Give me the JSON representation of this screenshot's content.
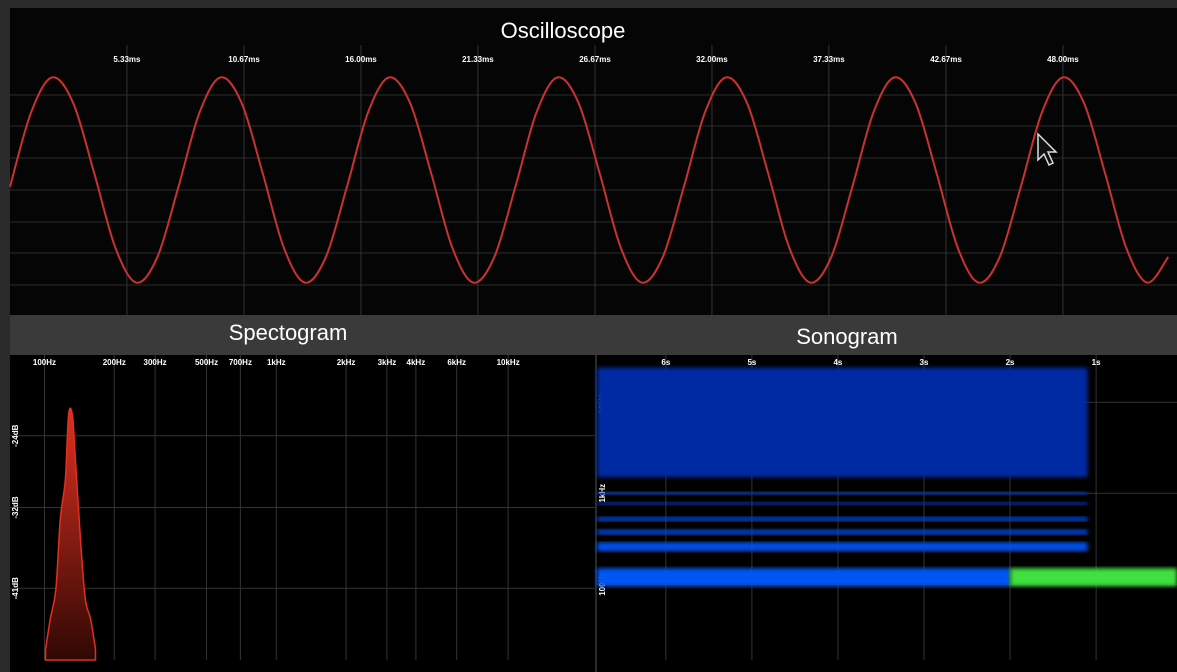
{
  "chart_data": [
    {
      "type": "line",
      "title": "Oscilloscope",
      "color": "#c83232",
      "grid": true,
      "x": [
        0,
        0.96,
        1.92,
        2.88,
        3.84,
        4.8,
        5.76,
        6.72,
        7.68,
        8.64,
        9.6,
        10.56,
        11.52,
        12.48,
        13.44,
        14.4,
        15.36,
        16.32,
        17.28,
        18.24,
        19.2,
        20.16,
        21.12,
        22.08,
        23.04,
        24,
        24.96,
        25.92,
        26.88,
        27.84,
        28.8,
        29.76,
        30.72,
        31.68,
        32.64,
        33.6,
        34.56,
        35.52,
        36.48,
        37.44,
        38.4,
        39.36,
        40.32,
        41.28,
        42.24,
        43.2,
        44.16,
        45.12,
        46.08,
        47.04,
        48,
        48.96,
        49.92,
        50.88,
        51.84,
        52.8
      ],
      "values": [
        -0.05,
        0.5,
        0.76,
        0.57,
        0.05,
        -0.5,
        -0.76,
        -0.57,
        -0.05,
        0.5,
        0.76,
        0.57,
        0.05,
        -0.5,
        -0.76,
        -0.57,
        -0.05,
        0.5,
        0.76,
        0.57,
        0.05,
        -0.5,
        -0.76,
        -0.57,
        -0.05,
        0.5,
        0.76,
        0.57,
        0.05,
        -0.5,
        -0.76,
        -0.57,
        -0.05,
        0.5,
        0.76,
        0.57,
        0.05,
        -0.5,
        -0.76,
        -0.57,
        -0.05,
        0.5,
        0.76,
        0.57,
        0.05,
        -0.5,
        -0.76,
        -0.57,
        -0.05,
        0.5,
        0.76,
        0.57,
        0.05,
        -0.5,
        -0.76,
        -0.57
      ],
      "xlim": [
        0,
        53.2
      ],
      "ylim": [
        -1,
        1
      ],
      "xticks": [
        {
          "value": 5.33,
          "label": "5.33ms"
        },
        {
          "value": 10.67,
          "label": "10.67ms"
        },
        {
          "value": 16.0,
          "label": "16.00ms"
        },
        {
          "value": 21.33,
          "label": "21.33ms"
        },
        {
          "value": 26.67,
          "label": "26.67ms"
        },
        {
          "value": 32.0,
          "label": "32.00ms"
        },
        {
          "value": 37.33,
          "label": "37.33ms"
        },
        {
          "value": 42.67,
          "label": "42.67ms"
        },
        {
          "value": 48.0,
          "label": "48.00ms"
        }
      ]
    },
    {
      "type": "area",
      "title": "Spectogram",
      "color": "#e03020",
      "grid": true,
      "xscale": "log",
      "x": [
        101,
        106,
        112,
        117,
        123,
        127,
        132,
        136,
        143,
        150,
        158,
        166
      ],
      "values": [
        -47.8,
        -44.4,
        -41.1,
        -33.3,
        -28.9,
        -21.7,
        -21.7,
        -26.7,
        -35.6,
        -42.2,
        -44.4,
        -47.8
      ],
      "xlim": [
        71,
        23700
      ],
      "ylim": [
        -49,
        -15
      ],
      "xticks": [
        {
          "value": 100,
          "label": "100Hz"
        },
        {
          "value": 200,
          "label": "200Hz"
        },
        {
          "value": 300,
          "label": "300Hz"
        },
        {
          "value": 500,
          "label": "500Hz"
        },
        {
          "value": 700,
          "label": "700Hz"
        },
        {
          "value": 1000,
          "label": "1kHz"
        },
        {
          "value": 2000,
          "label": "2kHz"
        },
        {
          "value": 3000,
          "label": "3kHz"
        },
        {
          "value": 4000,
          "label": "4kHz"
        },
        {
          "value": 6000,
          "label": "6kHz"
        },
        {
          "value": 10000,
          "label": "10kHz"
        }
      ],
      "yticks": [
        {
          "value": -24,
          "label": "-24dB"
        },
        {
          "value": -32,
          "label": "-32dB"
        },
        {
          "value": -41,
          "label": "-41dB"
        }
      ]
    },
    {
      "type": "heatmap",
      "title": "Sonogram",
      "grid": true,
      "yscale": "log",
      "bands": [
        {
          "f1": 1500,
          "f2": 24000,
          "from": 6.8,
          "to": 1.1,
          "level": 0.35
        },
        {
          "f1": 960,
          "f2": 1040,
          "from": 6.8,
          "to": 1.1,
          "level": 0.5
        },
        {
          "f1": 740,
          "f2": 800,
          "from": 6.8,
          "to": 1.1,
          "level": 0.5
        },
        {
          "f1": 490,
          "f2": 550,
          "from": 6.8,
          "to": 1.1,
          "level": 0.6
        },
        {
          "f1": 350,
          "f2": 400,
          "from": 6.8,
          "to": 1.1,
          "level": 0.6
        },
        {
          "f1": 230,
          "f2": 290,
          "from": 6.8,
          "to": 1.1,
          "level": 0.7
        },
        {
          "f1": 95,
          "f2": 150,
          "from": 6.8,
          "to": 2.0,
          "level": 0.75
        },
        {
          "f1": 95,
          "f2": 150,
          "from": 2.0,
          "to": 0.06,
          "level": 1.0
        }
      ],
      "xlim": [
        6.8,
        0.06
      ],
      "ylim": [
        14.7,
        33000
      ],
      "xticks": [
        {
          "value": 6,
          "label": "6s"
        },
        {
          "value": 5,
          "label": "5s"
        },
        {
          "value": 4,
          "label": "4s"
        },
        {
          "value": 3,
          "label": "3s"
        },
        {
          "value": 2,
          "label": "2s"
        },
        {
          "value": 1,
          "label": "1s"
        }
      ],
      "yticks": [
        {
          "value": 100,
          "label": "100Hz"
        },
        {
          "value": 1000,
          "label": "1kHz"
        },
        {
          "value": 10000,
          "label": "10kHz"
        }
      ]
    }
  ]
}
